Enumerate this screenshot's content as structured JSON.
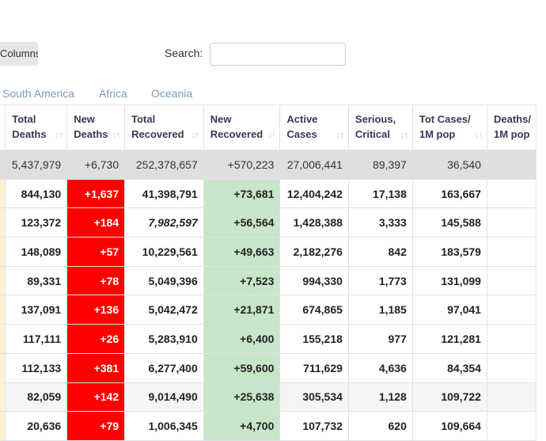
{
  "toolbar": {
    "columns_label": "Columns",
    "search_label": "Search:",
    "search_value": ""
  },
  "regions": [
    "South America",
    "Africa",
    "Oceania"
  ],
  "table": {
    "headers": [
      {
        "l1": "",
        "l2": ""
      },
      {
        "l1": "Total",
        "l2": "Deaths"
      },
      {
        "l1": "New",
        "l2": "Deaths"
      },
      {
        "l1": "Total",
        "l2": "Recovered"
      },
      {
        "l1": "New",
        "l2": "Recovered"
      },
      {
        "l1": "Active",
        "l2": "Cases"
      },
      {
        "l1": "Serious,",
        "l2": "Critical"
      },
      {
        "l1": "Tot Cases/",
        "l2": "1M pop"
      },
      {
        "l1": "Deaths/",
        "l2": "1M pop"
      }
    ],
    "total_row": [
      "",
      "5,437,979",
      "+6,730",
      "252,378,657",
      "+570,223",
      "27,006,441",
      "89,397",
      "36,540",
      ""
    ],
    "rows": [
      [
        "",
        "844,130",
        "+1,637",
        "41,398,791",
        "+73,681",
        "12,404,242",
        "17,138",
        "163,667",
        ""
      ],
      [
        "",
        "123,372",
        "+184",
        "7,982,597",
        "+56,564",
        "1,428,388",
        "3,333",
        "145,588",
        ""
      ],
      [
        "",
        "148,089",
        "+57",
        "10,229,561",
        "+49,663",
        "2,182,276",
        "842",
        "183,579",
        ""
      ],
      [
        "",
        "89,331",
        "+78",
        "5,049,396",
        "+7,523",
        "994,330",
        "1,773",
        "131,099",
        ""
      ],
      [
        "",
        "137,091",
        "+136",
        "5,042,472",
        "+21,871",
        "674,865",
        "1,185",
        "97,041",
        ""
      ],
      [
        "",
        "117,111",
        "+26",
        "5,283,910",
        "+6,400",
        "155,218",
        "977",
        "121,281",
        ""
      ],
      [
        "",
        "112,133",
        "+381",
        "6,277,400",
        "+59,600",
        "711,629",
        "4,636",
        "84,354",
        ""
      ],
      [
        "",
        "82,059",
        "+142",
        "9,014,490",
        "+25,638",
        "305,534",
        "1,128",
        "109,722",
        ""
      ],
      [
        "",
        "20,636",
        "+79",
        "1,006,345",
        "+4,700",
        "107,732",
        "620",
        "109,664",
        ""
      ]
    ],
    "italic_cells": [
      [
        1,
        3
      ]
    ]
  },
  "colors": {
    "new_deaths_bg": "#ff0000",
    "new_recovered_bg": "#c8e6c9",
    "total_row_bg": "#dfdfdf",
    "region_link": "#7c9bb8",
    "first_col_bg": "#fff3d4"
  }
}
